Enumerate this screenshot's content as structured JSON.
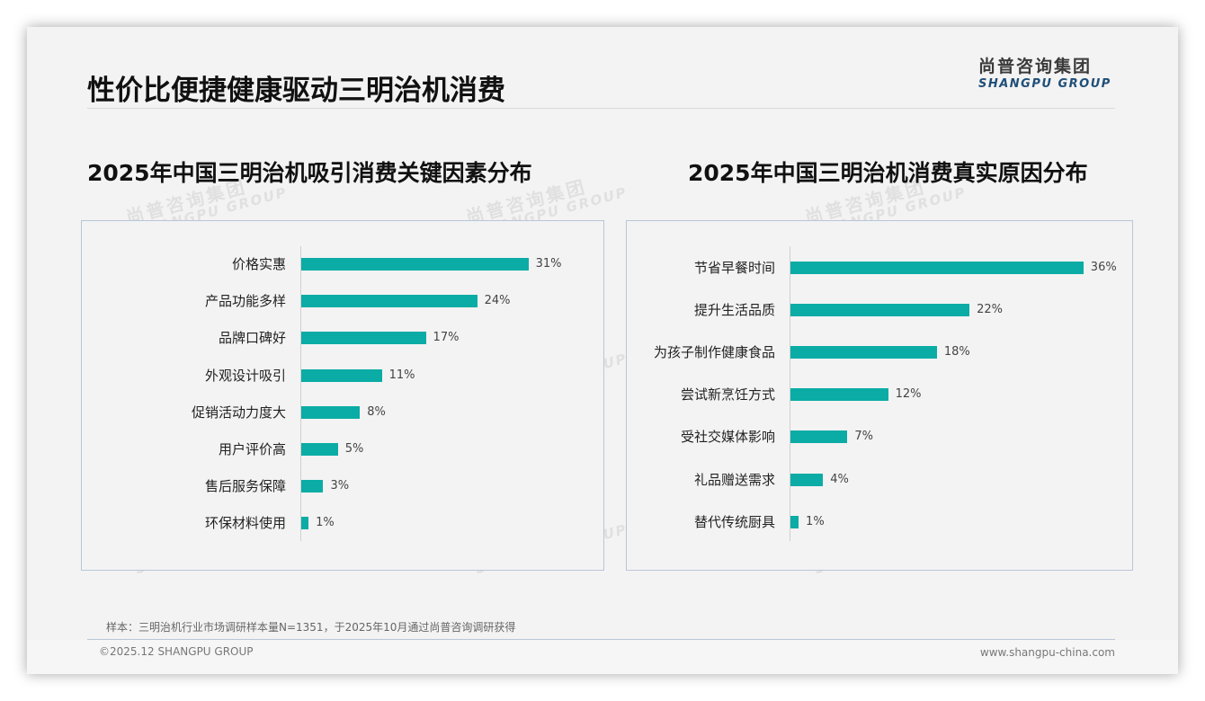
{
  "page": {
    "title": "性价比便捷健康驱动三明治机消费",
    "logo_cn": "尚普咨询集团",
    "logo_en": "SHANGPU GROUP",
    "watermark_cn": "尚普咨询集团",
    "watermark_en": "SHANGPU GROUP",
    "note": "样本：三明治机行业市场调研样本量N=1351，于2025年10月通过尚普咨询调研获得",
    "copyright": "©2025.12 SHANGPU GROUP",
    "website": "www.shangpu-china.com",
    "colors": {
      "bar": "#0aaca5",
      "brand_blue": "#1f4e79",
      "panel_border": "#b9c6d6"
    }
  },
  "chart_data": [
    {
      "type": "bar",
      "orientation": "horizontal",
      "title": "2025年中国三明治机吸引消费关键因素分布",
      "categories": [
        "价格实惠",
        "产品功能多样",
        "品牌口碑好",
        "外观设计吸引",
        "促销活动力度大",
        "用户评价高",
        "售后服务保障",
        "环保材料使用"
      ],
      "values": [
        31,
        24,
        17,
        11,
        8,
        5,
        3,
        1
      ],
      "labels": [
        "31%",
        "24%",
        "17%",
        "11%",
        "8%",
        "5%",
        "3%",
        "1%"
      ],
      "unit": "%",
      "xlabel": "",
      "ylabel": "",
      "grid": false,
      "legend": false
    },
    {
      "type": "bar",
      "orientation": "horizontal",
      "title": "2025年中国三明治机消费真实原因分布",
      "categories": [
        "节省早餐时间",
        "提升生活品质",
        "为孩子制作健康食品",
        "尝试新烹饪方式",
        "受社交媒体影响",
        "礼品赠送需求",
        "替代传统厨具"
      ],
      "values": [
        36,
        22,
        18,
        12,
        7,
        4,
        1
      ],
      "labels": [
        "36%",
        "22%",
        "18%",
        "12%",
        "7%",
        "4%",
        "1%"
      ],
      "unit": "%",
      "xlabel": "",
      "ylabel": "",
      "grid": false,
      "legend": false
    }
  ]
}
